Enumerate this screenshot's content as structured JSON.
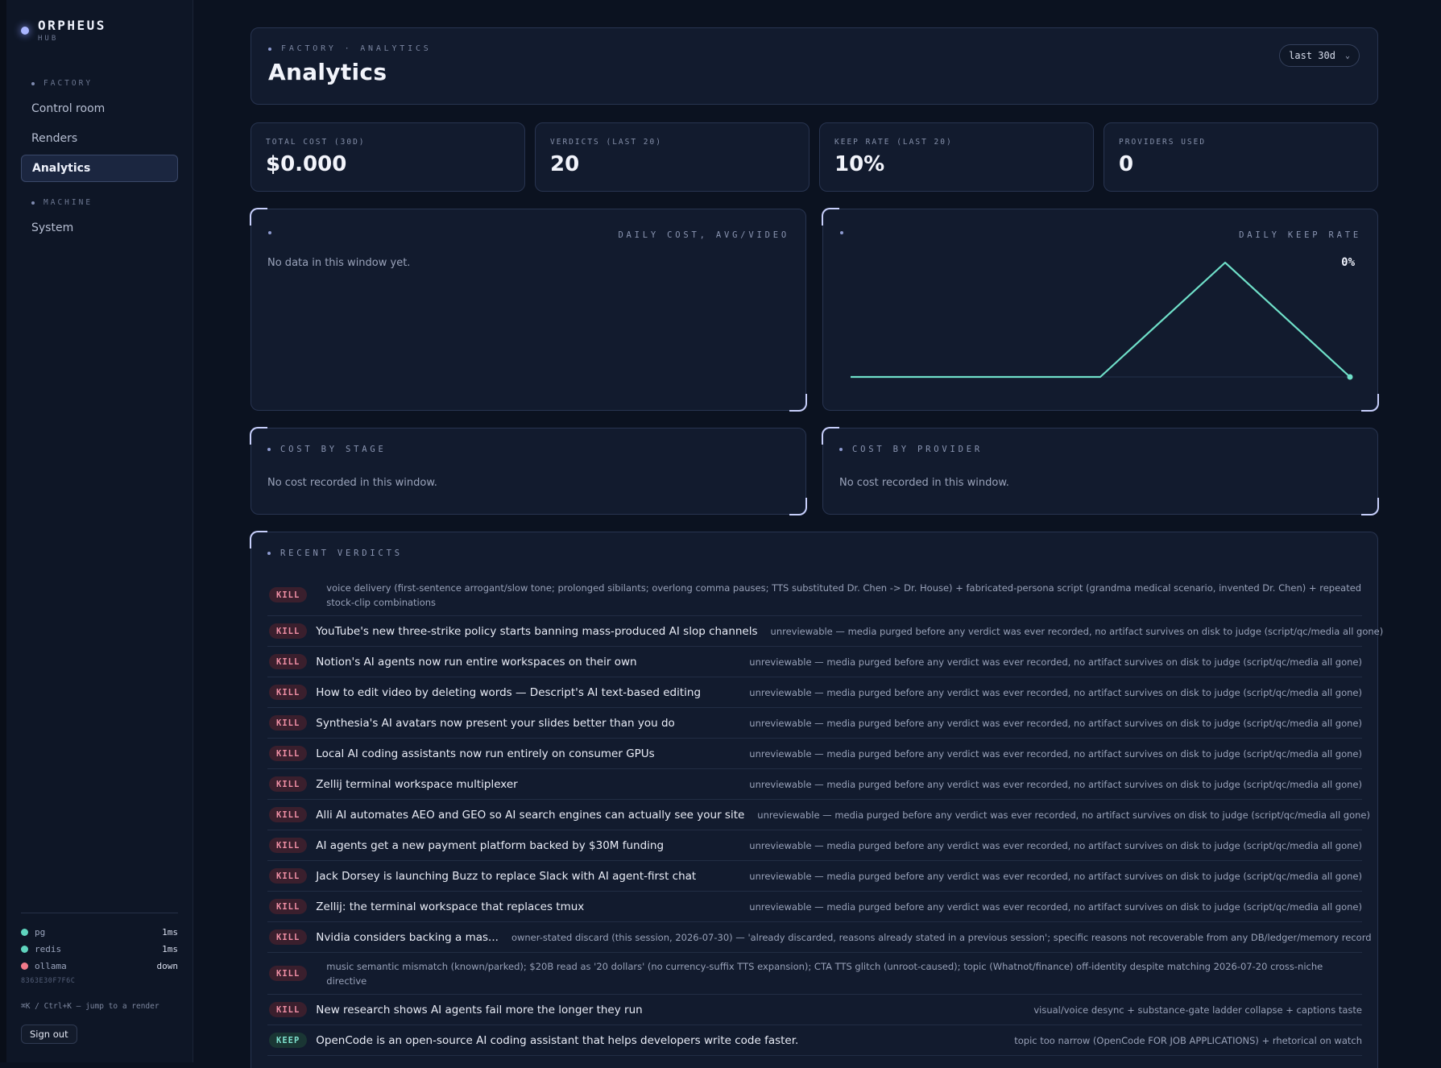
{
  "brand": {
    "title": "ORPHEUS",
    "subtitle": "HUB"
  },
  "sidebar": {
    "sections": [
      {
        "label": "FACTORY",
        "items": [
          {
            "label": "Control room",
            "active": false
          },
          {
            "label": "Renders",
            "active": false
          },
          {
            "label": "Analytics",
            "active": true
          }
        ]
      },
      {
        "label": "MACHINE",
        "items": [
          {
            "label": "System",
            "active": false
          }
        ]
      }
    ],
    "health": [
      {
        "name": "pg",
        "value": "1ms",
        "color": "#5fd4be"
      },
      {
        "name": "redis",
        "value": "1ms",
        "color": "#5fd4be"
      },
      {
        "name": "ollama",
        "value": "down",
        "color": "#f07a8a"
      }
    ],
    "build_id": "8363E30F7F6C",
    "shortcut_hint": "⌘K / Ctrl+K — jump to a render",
    "signout_label": "Sign out"
  },
  "header": {
    "breadcrumb": "FACTORY · ANALYTICS",
    "title": "Analytics",
    "range": "last 30d"
  },
  "stats": [
    {
      "label": "TOTAL COST (30D)",
      "value": "$0.000"
    },
    {
      "label": "VERDICTS (LAST 20)",
      "value": "20"
    },
    {
      "label": "KEEP RATE (LAST 20)",
      "value": "10%"
    },
    {
      "label": "PROVIDERS USED",
      "value": "0"
    }
  ],
  "panels": {
    "daily_cost": {
      "title": "DAILY COST, AVG/VIDEO",
      "empty": "No data in this window yet."
    },
    "daily_keep": {
      "title": "DAILY KEEP RATE",
      "latest_label": "0%"
    },
    "cost_by_stage": {
      "title": "COST BY STAGE",
      "empty": "No cost recorded in this window."
    },
    "cost_by_provider": {
      "title": "COST BY PROVIDER",
      "empty": "No cost recorded in this window."
    },
    "recent_verdicts": {
      "title": "RECENT VERDICTS"
    }
  },
  "chart_data": {
    "type": "line",
    "title": "DAILY KEEP RATE",
    "series": [
      {
        "values": [
          0,
          0,
          0,
          0.5,
          0
        ]
      }
    ],
    "x": [
      0,
      1,
      2,
      3,
      4
    ],
    "ylim": [
      0,
      0.5
    ],
    "latest_label": "0%",
    "grid": false,
    "line_color": "#6fe0c9"
  },
  "verdicts": [
    {
      "verdict": "KILL",
      "title": "",
      "reason": "voice delivery (first-sentence arrogant/slow tone; prolonged sibilants; overlong comma pauses; TTS substituted Dr. Chen -> Dr. House) + fabricated-persona script (grandma medical scenario, invented Dr. Chen) + repeated stock-clip combinations"
    },
    {
      "verdict": "KILL",
      "title": "YouTube's new three-strike policy starts banning mass-produced AI slop channels",
      "reason": "unreviewable — media purged before any verdict was ever recorded, no artifact survives on disk to judge (script/qc/media all gone)"
    },
    {
      "verdict": "KILL",
      "title": "Notion's AI agents now run entire workspaces on their own",
      "reason": "unreviewable — media purged before any verdict was ever recorded, no artifact survives on disk to judge (script/qc/media all gone)"
    },
    {
      "verdict": "KILL",
      "title": "How to edit video by deleting words — Descript's AI text-based editing",
      "reason": "unreviewable — media purged before any verdict was ever recorded, no artifact survives on disk to judge (script/qc/media all gone)"
    },
    {
      "verdict": "KILL",
      "title": "Synthesia's AI avatars now present your slides better than you do",
      "reason": "unreviewable — media purged before any verdict was ever recorded, no artifact survives on disk to judge (script/qc/media all gone)"
    },
    {
      "verdict": "KILL",
      "title": "Local AI coding assistants now run entirely on consumer GPUs",
      "reason": "unreviewable — media purged before any verdict was ever recorded, no artifact survives on disk to judge (script/qc/media all gone)"
    },
    {
      "verdict": "KILL",
      "title": "Zellij terminal workspace multiplexer",
      "reason": "unreviewable — media purged before any verdict was ever recorded, no artifact survives on disk to judge (script/qc/media all gone)"
    },
    {
      "verdict": "KILL",
      "title": "Alli AI automates AEO and GEO so AI search engines can actually see your site",
      "reason": "unreviewable — media purged before any verdict was ever recorded, no artifact survives on disk to judge (script/qc/media all gone)"
    },
    {
      "verdict": "KILL",
      "title": "AI agents get a new payment platform backed by $30M funding",
      "reason": "unreviewable — media purged before any verdict was ever recorded, no artifact survives on disk to judge (script/qc/media all gone)"
    },
    {
      "verdict": "KILL",
      "title": "Jack Dorsey is launching Buzz to replace Slack with AI agent-first chat",
      "reason": "unreviewable — media purged before any verdict was ever recorded, no artifact survives on disk to judge (script/qc/media all gone)"
    },
    {
      "verdict": "KILL",
      "title": "Zellij: the terminal workspace that replaces tmux",
      "reason": "unreviewable — media purged before any verdict was ever recorded, no artifact survives on disk to judge (script/qc/media all gone)"
    },
    {
      "verdict": "KILL",
      "title": "Nvidia considers backing a mas...",
      "reason": "owner-stated discard (this session, 2026-07-30) — 'already discarded, reasons already stated in a previous session'; specific reasons not recoverable from any DB/ledger/memory record"
    },
    {
      "verdict": "KILL",
      "title": "",
      "reason": "music semantic mismatch (known/parked); $20B read as '20 dollars' (no currency-suffix TTS expansion); CTA TTS glitch (unroot-caused); topic (Whatnot/finance) off-identity despite matching 2026-07-20 cross-niche directive"
    },
    {
      "verdict": "KILL",
      "title": "New research shows AI agents fail more the longer they run",
      "reason": "visual/voice desync + substance-gate ladder collapse + captions taste"
    },
    {
      "verdict": "KEEP",
      "title": "OpenCode is an open-source AI coding assistant that helps developers write code faster.",
      "reason": "topic too narrow (OpenCode FOR JOB APPLICATIONS) + rhetorical on watch"
    }
  ]
}
